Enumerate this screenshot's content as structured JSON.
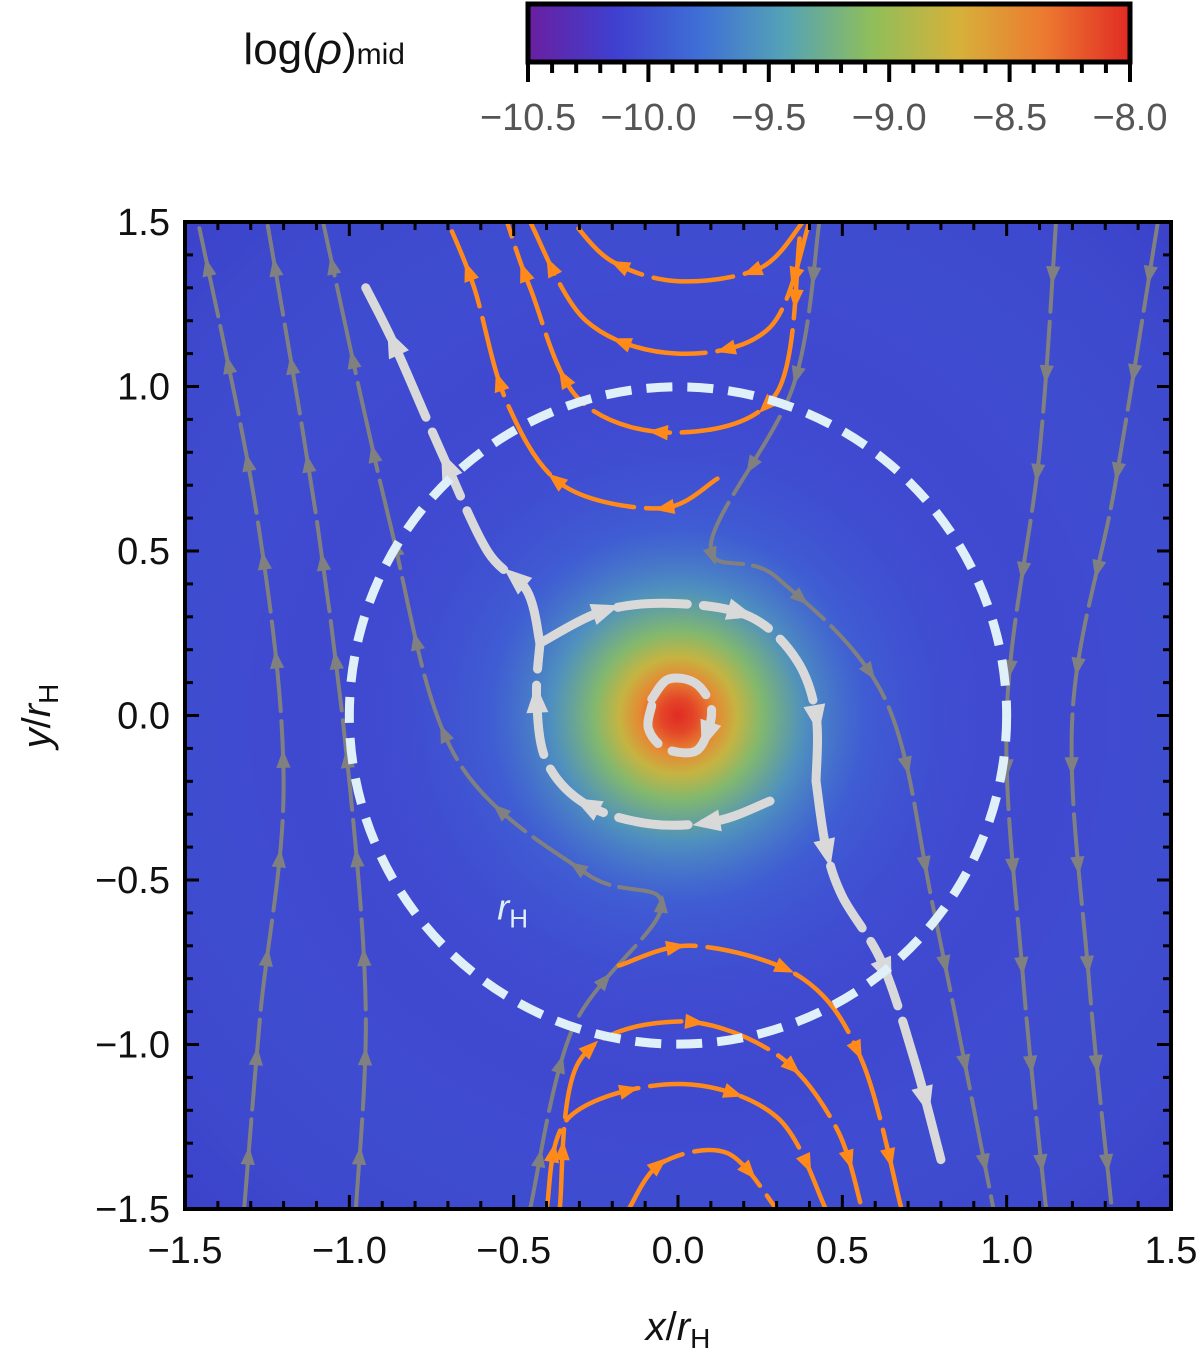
{
  "chart_data": {
    "type": "heatmap",
    "title": "",
    "xlabel": "x/r_H",
    "ylabel": "y/r_H",
    "x_range": [
      -1.5,
      1.5
    ],
    "y_range": [
      -1.5,
      1.5
    ],
    "x_ticks": [
      -1.5,
      -1.0,
      -0.5,
      0.0,
      0.5,
      1.0,
      1.5
    ],
    "x_tick_labels": [
      "−1.5",
      "−1.0",
      "−0.5",
      "0.0",
      "0.5",
      "1.0",
      "1.5"
    ],
    "y_ticks": [
      1.5,
      1.0,
      0.5,
      0.0,
      -0.5,
      -1.0,
      -1.5
    ],
    "y_tick_labels": [
      "1.5",
      "1.0",
      "0.5",
      "0.0",
      "−0.5",
      "−1.0",
      "−1.5"
    ],
    "axis_label_x": {
      "italic": "x",
      "slash": "/",
      "r": "r",
      "sub": "H"
    },
    "axis_label_y": {
      "italic": "y",
      "slash": "/",
      "r": "r",
      "sub": "H"
    },
    "colorbar": {
      "label_main": "log(",
      "label_symbol": "ρ",
      "label_close": ")",
      "label_sub": "mid",
      "range": [
        -10.5,
        -8.0
      ],
      "ticks": [
        -10.5,
        -10.0,
        -9.5,
        -9.0,
        -8.5,
        -8.0
      ],
      "tick_labels": [
        "−10.5",
        "−10.0",
        "−9.5",
        "−9.0",
        "−8.5",
        "−8.0"
      ],
      "colors": [
        "#6a1fa0",
        "#3f3fcf",
        "#3f6fd6",
        "#55a3b5",
        "#8fbe5a",
        "#d6b13a",
        "#ec7a30",
        "#e02b24"
      ]
    },
    "density_peak": {
      "x": 0.0,
      "y": 0.0,
      "value": -8.0
    },
    "density_background": -10.1,
    "hill_circle": {
      "center": [
        0.0,
        0.0
      ],
      "radius": 1.0,
      "label": "r_H",
      "label_text": "r",
      "label_sub": "H",
      "label_at": [
        -0.55,
        -0.62
      ],
      "color": "#dff0f8"
    },
    "streamline_colors": {
      "passing": "#808080",
      "horseshoe": "#ff8a1a",
      "circumplanetary": "#d9d9d9"
    },
    "streamlines": [
      {
        "group": "passing",
        "direction": "up",
        "points": [
          [
            -1.32,
            -1.5
          ],
          [
            -1.27,
            -0.9
          ],
          [
            -1.2,
            -0.2
          ],
          [
            -1.28,
            0.6
          ],
          [
            -1.46,
            1.5
          ]
        ]
      },
      {
        "group": "passing",
        "direction": "up",
        "points": [
          [
            -0.98,
            -1.5
          ],
          [
            -0.95,
            -0.9
          ],
          [
            -1.0,
            -0.2
          ],
          [
            -1.1,
            0.6
          ],
          [
            -1.25,
            1.5
          ]
        ]
      },
      {
        "group": "passing",
        "direction": "up",
        "points": [
          [
            -0.45,
            -1.5
          ],
          [
            -0.32,
            -0.95
          ],
          [
            -0.05,
            -0.58
          ],
          [
            -0.28,
            -0.48
          ],
          [
            -0.68,
            -0.12
          ],
          [
            -0.88,
            0.6
          ],
          [
            -1.08,
            1.5
          ]
        ]
      },
      {
        "group": "passing",
        "direction": "down",
        "points": [
          [
            0.43,
            1.5
          ],
          [
            0.35,
            1.0
          ],
          [
            0.1,
            0.52
          ],
          [
            0.3,
            0.42
          ],
          [
            0.63,
            0.05
          ],
          [
            0.78,
            -0.6
          ],
          [
            0.96,
            -1.5
          ]
        ]
      },
      {
        "group": "passing",
        "direction": "down",
        "points": [
          [
            1.46,
            1.5
          ],
          [
            1.33,
            0.7
          ],
          [
            1.2,
            0.0
          ],
          [
            1.25,
            -0.8
          ],
          [
            1.32,
            -1.5
          ]
        ]
      },
      {
        "group": "passing",
        "direction": "down",
        "points": [
          [
            1.15,
            1.5
          ],
          [
            1.1,
            0.8
          ],
          [
            1.0,
            0.0
          ],
          [
            1.05,
            -0.8
          ],
          [
            1.12,
            -1.5
          ]
        ]
      },
      {
        "group": "horseshoe",
        "direction": "left",
        "points": [
          [
            0.38,
            1.5
          ],
          [
            0.25,
            1.36
          ],
          [
            0.0,
            1.32
          ],
          [
            -0.2,
            1.38
          ],
          [
            -0.32,
            1.5
          ]
        ]
      },
      {
        "group": "horseshoe",
        "direction": "left",
        "points": [
          [
            0.4,
            1.5
          ],
          [
            0.28,
            1.18
          ],
          [
            0.0,
            1.1
          ],
          [
            -0.28,
            1.2
          ],
          [
            -0.45,
            1.5
          ]
        ]
      },
      {
        "group": "horseshoe",
        "direction": "left",
        "points": [
          [
            0.37,
            1.45
          ],
          [
            0.3,
            0.98
          ],
          [
            0.0,
            0.86
          ],
          [
            -0.3,
            0.96
          ],
          [
            -0.45,
            1.3
          ],
          [
            -0.52,
            1.5
          ]
        ]
      },
      {
        "group": "horseshoe",
        "direction": "left",
        "points": [
          [
            0.12,
            0.72
          ],
          [
            -0.05,
            0.63
          ],
          [
            -0.35,
            0.7
          ],
          [
            -0.52,
            0.95
          ],
          [
            -0.62,
            1.3
          ],
          [
            -0.7,
            1.5
          ]
        ]
      },
      {
        "group": "horseshoe",
        "direction": "right",
        "points": [
          [
            -0.18,
            -0.76
          ],
          [
            0.05,
            -0.7
          ],
          [
            0.38,
            -0.8
          ],
          [
            0.56,
            -1.05
          ],
          [
            0.68,
            -1.5
          ]
        ]
      },
      {
        "group": "horseshoe",
        "direction": "right",
        "points": [
          [
            -0.36,
            -1.5
          ],
          [
            -0.3,
            -1.05
          ],
          [
            0.0,
            -0.93
          ],
          [
            0.3,
            -1.03
          ],
          [
            0.48,
            -1.25
          ],
          [
            0.56,
            -1.5
          ]
        ]
      },
      {
        "group": "horseshoe",
        "direction": "right",
        "points": [
          [
            -0.4,
            -1.5
          ],
          [
            -0.33,
            -1.22
          ],
          [
            0.0,
            -1.12
          ],
          [
            0.3,
            -1.22
          ],
          [
            0.45,
            -1.5
          ]
        ]
      },
      {
        "group": "horseshoe",
        "direction": "right",
        "points": [
          [
            -0.15,
            -1.5
          ],
          [
            -0.05,
            -1.36
          ],
          [
            0.15,
            -1.33
          ],
          [
            0.3,
            -1.5
          ]
        ]
      },
      {
        "group": "circumplanetary",
        "direction": "up",
        "points": [
          [
            -0.42,
            0.22
          ],
          [
            -0.46,
            0.38
          ],
          [
            -0.58,
            0.5
          ],
          [
            -0.72,
            0.8
          ],
          [
            -0.86,
            1.12
          ],
          [
            -0.95,
            1.3
          ]
        ]
      },
      {
        "group": "circumplanetary",
        "direction": "down",
        "points": [
          [
            0.42,
            -0.2
          ],
          [
            0.45,
            -0.4
          ],
          [
            0.5,
            -0.55
          ],
          [
            0.62,
            -0.75
          ],
          [
            0.72,
            -1.05
          ],
          [
            0.8,
            -1.35
          ]
        ]
      },
      {
        "group": "circumplanetary",
        "direction": "clockwise",
        "points": [
          [
            -0.42,
            0.22
          ],
          [
            -0.22,
            0.32
          ],
          [
            0.0,
            0.34
          ],
          [
            0.22,
            0.3
          ],
          [
            0.36,
            0.17
          ],
          [
            0.42,
            0.0
          ],
          [
            0.42,
            -0.2
          ]
        ]
      },
      {
        "group": "circumplanetary",
        "direction": "clockwise",
        "points": [
          [
            0.28,
            -0.26
          ],
          [
            0.12,
            -0.32
          ],
          [
            -0.08,
            -0.33
          ],
          [
            -0.28,
            -0.27
          ],
          [
            -0.4,
            -0.14
          ],
          [
            -0.43,
            0.05
          ],
          [
            -0.42,
            0.22
          ]
        ]
      },
      {
        "group": "circumplanetary",
        "direction": "clockwise",
        "points": [
          [
            -0.08,
            0.05
          ],
          [
            -0.03,
            0.11
          ],
          [
            0.05,
            0.1
          ],
          [
            0.1,
            0.03
          ],
          [
            0.09,
            -0.05
          ],
          [
            0.05,
            -0.11
          ],
          [
            -0.04,
            -0.1
          ],
          [
            -0.09,
            -0.04
          ],
          [
            -0.08,
            0.03
          ]
        ]
      }
    ]
  }
}
